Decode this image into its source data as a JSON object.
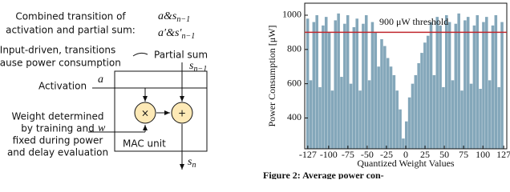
{
  "diagram": {
    "combined": [
      "Combined transition of",
      "activation and partial sum:"
    ],
    "combined_math": [
      {
        "base": "a&s",
        "sub": "n−1"
      },
      {
        "base": "a′&s′",
        "sub": "n−1"
      }
    ],
    "input_note": [
      "Input-driven, transitions",
      "cause power consumption"
    ],
    "partial_sum": "Partial sum",
    "s_in": {
      "base": "s",
      "sub": "n−1"
    },
    "activation": "Activation",
    "a": "a",
    "weight_note": [
      "Weight determined",
      "by training and",
      "fixed during power",
      "and delay evaluation"
    ],
    "w": "w",
    "mult": "×",
    "add": "+",
    "mac": "MAC unit",
    "s_out": {
      "base": "s",
      "sub": "n"
    }
  },
  "chart_data": {
    "type": "bar",
    "ylabel": "Power Consumption [μW]",
    "xlabel": "Quantized Weight Values",
    "color": "#6f98ae",
    "x": [
      -127,
      -123,
      -119,
      -115,
      -111,
      -107,
      -103,
      -99,
      -95,
      -91,
      -87,
      -83,
      -79,
      -75,
      -71,
      -67,
      -63,
      -59,
      -55,
      -51,
      -47,
      -43,
      -39,
      -35,
      -31,
      -27,
      -23,
      -19,
      -15,
      -11,
      -7,
      -3,
      1,
      5,
      9,
      13,
      17,
      21,
      25,
      29,
      33,
      37,
      41,
      45,
      49,
      53,
      57,
      61,
      65,
      69,
      73,
      77,
      81,
      85,
      89,
      93,
      97,
      101,
      105,
      109,
      113,
      117,
      121,
      125
    ],
    "values": [
      980,
      620,
      960,
      1000,
      580,
      940,
      990,
      900,
      560,
      970,
      1010,
      640,
      950,
      1000,
      600,
      930,
      980,
      560,
      950,
      1000,
      620,
      960,
      900,
      700,
      860,
      820,
      750,
      700,
      650,
      560,
      450,
      280,
      380,
      520,
      600,
      650,
      720,
      780,
      840,
      880,
      960,
      650,
      990,
      940,
      580,
      1000,
      960,
      620,
      950,
      1010,
      560,
      970,
      990,
      600,
      940,
      1000,
      570,
      960,
      990,
      620,
      940,
      1000,
      580,
      960
    ],
    "xlim": [
      -131,
      131
    ],
    "ylim": [
      220,
      1070
    ],
    "xticks": [
      -127,
      -100,
      -75,
      -50,
      -25,
      0,
      25,
      50,
      75,
      100,
      127
    ],
    "yticks": [
      400,
      600,
      800,
      1000
    ],
    "threshold": {
      "value": 900,
      "label": "900 μW threshold",
      "color": "#c0272d"
    },
    "caption": "Figure 2: Average power con-"
  }
}
